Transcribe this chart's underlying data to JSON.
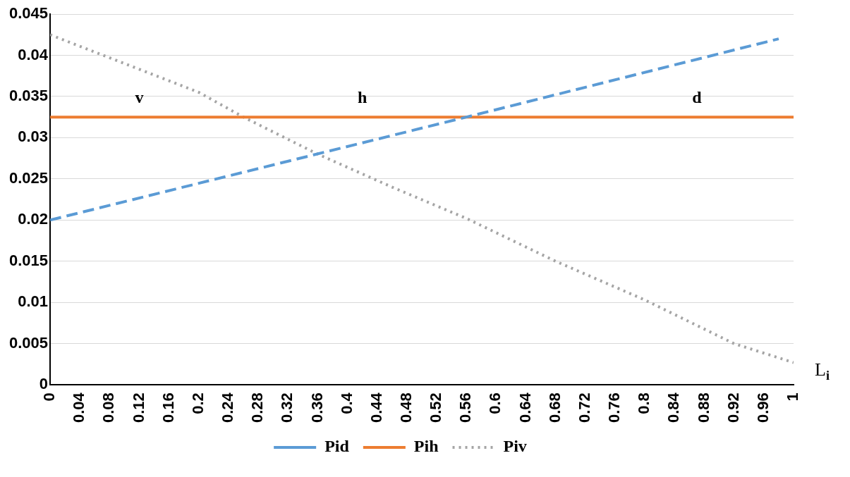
{
  "chart_data": {
    "type": "line",
    "xlabel": "L$_{i}$",
    "xlim": [
      0,
      1
    ],
    "xticks": [
      0,
      0.04,
      0.08,
      0.12,
      0.16,
      0.2,
      0.24,
      0.28,
      0.32,
      0.36,
      0.4,
      0.44,
      0.48,
      0.52,
      0.56,
      0.6,
      0.64,
      0.68,
      0.72,
      0.76,
      0.8,
      0.84,
      0.88,
      0.92,
      0.96,
      1
    ],
    "ylim": [
      0,
      0.045
    ],
    "yticks": [
      0,
      0.005,
      0.01,
      0.015,
      0.02,
      0.025,
      0.03,
      0.035,
      0.04,
      0.045
    ],
    "grid": "y",
    "legend": "bottom",
    "marker": "none",
    "series": [
      {
        "name": "Pid",
        "color": "#5b9bd5",
        "line_style": "dashed",
        "x": [
          0,
          0.56,
          0.98
        ],
        "values": [
          0.02,
          0.0325,
          0.042
        ]
      },
      {
        "name": "Pih",
        "color": "#ed7d31",
        "line_style": "solid",
        "x": [
          0,
          1
        ],
        "values": [
          0.0325,
          0.0325
        ]
      },
      {
        "name": "Piv",
        "color": "#a5a5a5",
        "line_style": "dotted",
        "x": [
          0,
          0.1,
          0.2,
          0.26,
          0.36,
          0.46,
          0.56,
          0.68,
          0.8,
          0.92,
          1
        ],
        "values": [
          0.0425,
          0.039,
          0.0355,
          0.0325,
          0.028,
          0.024,
          0.0202,
          0.015,
          0.0103,
          0.005,
          0.0027
        ]
      }
    ],
    "annotations": [
      "v",
      "h",
      "d"
    ]
  }
}
